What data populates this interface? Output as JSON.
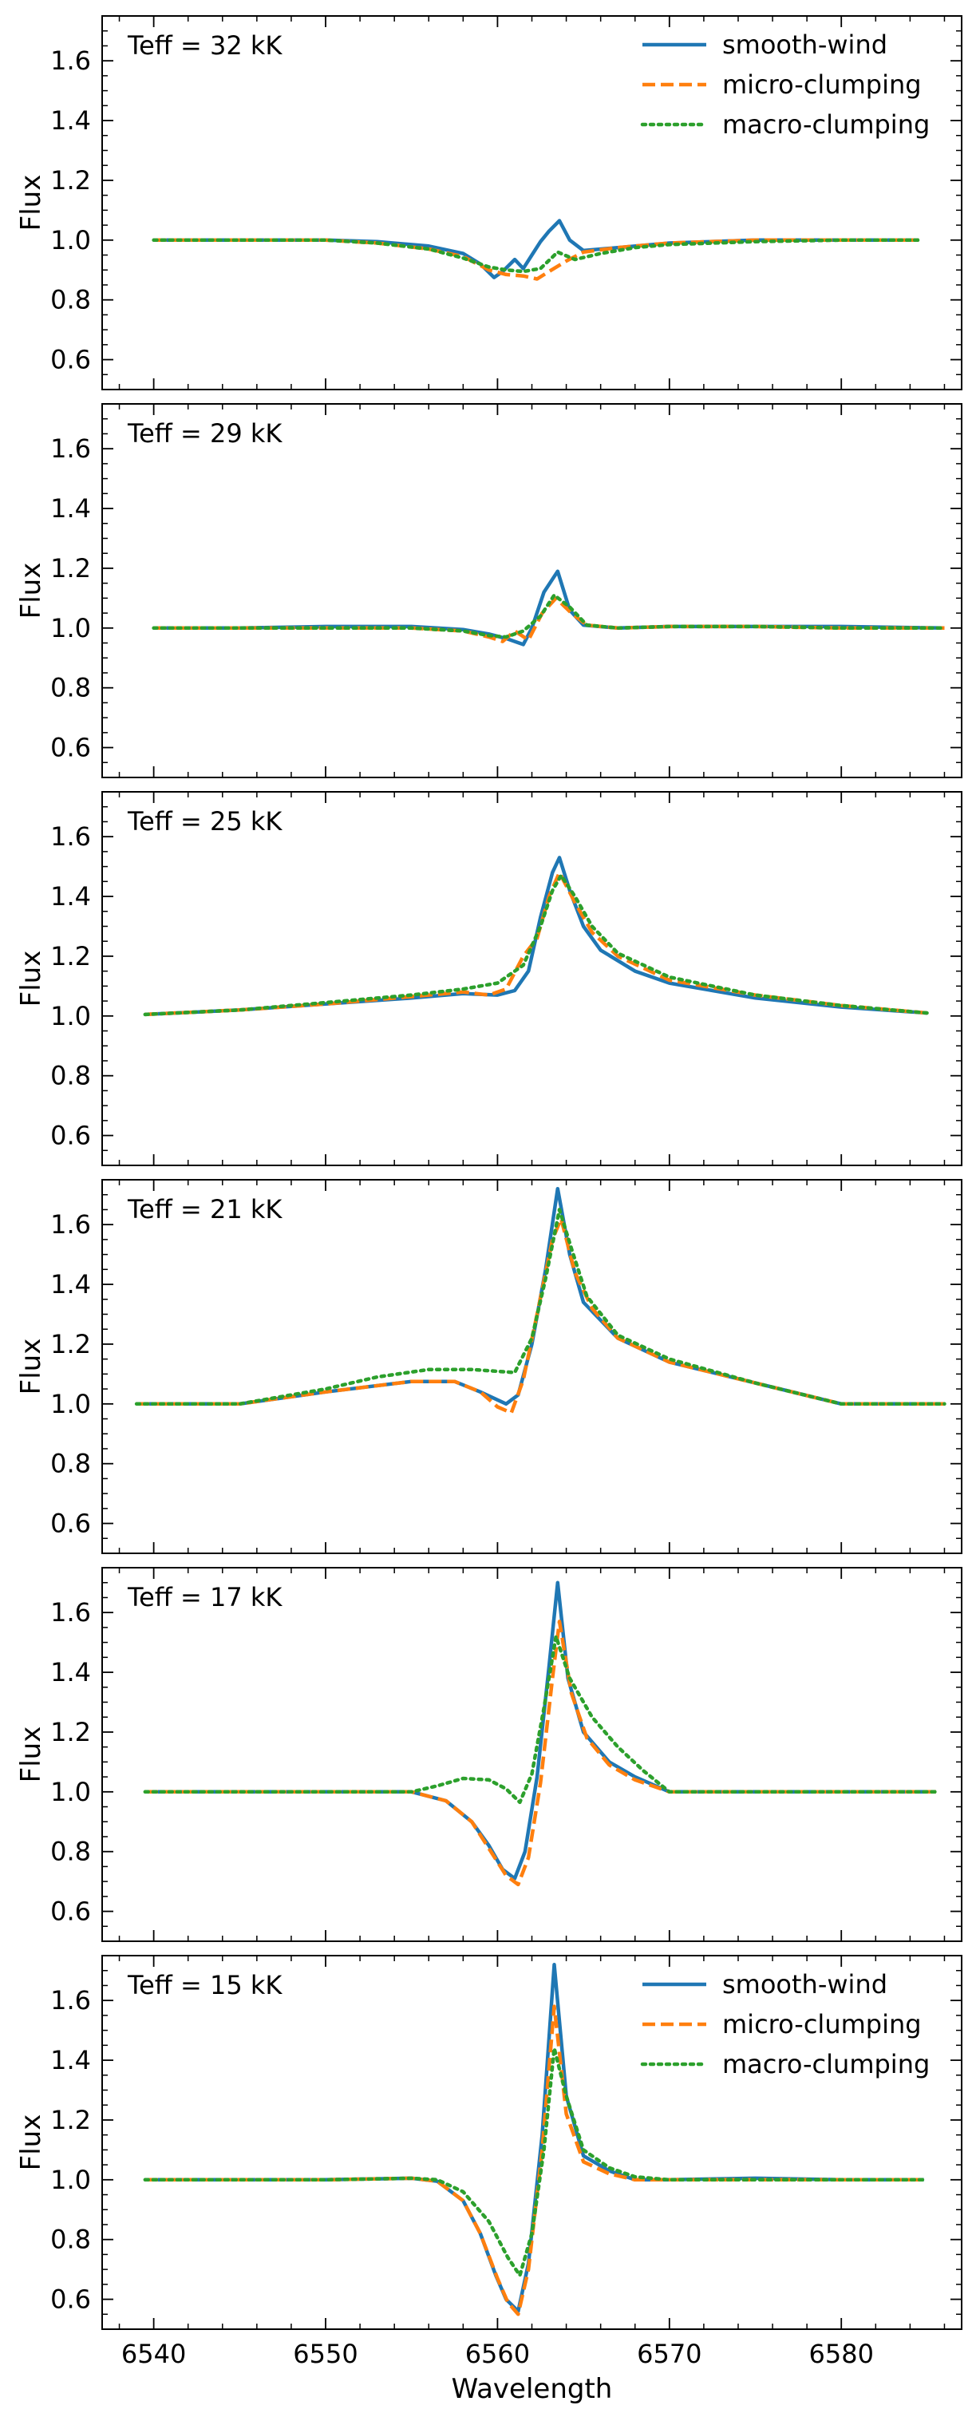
{
  "chart_data": {
    "type": "line",
    "xlabel": "Wavelength",
    "ylabel": "Flux",
    "xlim": [
      6537,
      6587
    ],
    "ylim": [
      0.5,
      1.75
    ],
    "xticks": [
      "6540",
      "6550",
      "6560",
      "6570",
      "6580"
    ],
    "yticks": [
      "0.6",
      "0.8",
      "1.0",
      "1.2",
      "1.4",
      "1.6"
    ],
    "styles": {
      "smooth-wind": {
        "color": "#1f77b4",
        "dash": "solid"
      },
      "micro-clumping": {
        "color": "#ff7f0e",
        "dash": "dashed"
      },
      "macro-clumping": {
        "color": "#2ca02c",
        "dash": "dotted"
      }
    },
    "legend_entries": [
      "smooth-wind",
      "micro-clumping",
      "macro-clumping"
    ],
    "legend_location": "upper right (top and bottom panels)",
    "panels": [
      {
        "label": "Teff = 32 kK",
        "show_legend": true,
        "series": [
          {
            "name": "smooth-wind",
            "x": [
              6540,
              6545,
              6550,
              6553,
              6556,
              6558,
              6559,
              6559.8,
              6560.3,
              6561,
              6561.5,
              6562,
              6562.5,
              6563,
              6563.6,
              6564.2,
              6565,
              6567,
              6570,
              6575,
              6580,
              6584.5
            ],
            "y": [
              1.0,
              1.0,
              1.0,
              0.995,
              0.98,
              0.955,
              0.92,
              0.875,
              0.895,
              0.935,
              0.905,
              0.95,
              0.995,
              1.03,
              1.065,
              1.0,
              0.965,
              0.975,
              0.99,
              1.0,
              1.0,
              1.0
            ]
          },
          {
            "name": "micro-clumping",
            "x": [
              6540,
              6545,
              6550,
              6553,
              6556,
              6558,
              6559.5,
              6560.5,
              6561.5,
              6562.3,
              6563,
              6564,
              6565,
              6567,
              6570,
              6575,
              6580,
              6584.5
            ],
            "y": [
              1.0,
              1.0,
              1.0,
              0.99,
              0.97,
              0.945,
              0.9,
              0.885,
              0.88,
              0.87,
              0.895,
              0.93,
              0.96,
              0.975,
              0.99,
              1.0,
              1.0,
              1.0
            ]
          },
          {
            "name": "macro-clumping",
            "x": [
              6540,
              6545,
              6550,
              6553,
              6556,
              6558,
              6559.5,
              6560.5,
              6561.5,
              6562.5,
              6563.5,
              6564.5,
              6566,
              6568,
              6570,
              6575,
              6580,
              6584.5
            ],
            "y": [
              1.0,
              1.0,
              1.0,
              0.99,
              0.97,
              0.94,
              0.91,
              0.9,
              0.895,
              0.905,
              0.96,
              0.935,
              0.955,
              0.975,
              0.985,
              0.995,
              1.0,
              1.0
            ]
          }
        ]
      },
      {
        "label": "Teff = 29 kK",
        "show_legend": false,
        "series": [
          {
            "name": "smooth-wind",
            "x": [
              6540,
              6545,
              6550,
              6555,
              6558,
              6559.5,
              6560.5,
              6561.5,
              6562,
              6562.7,
              6563.5,
              6564.2,
              6565,
              6567,
              6570,
              6575,
              6580,
              6586
            ],
            "y": [
              1.0,
              1.0,
              1.005,
              1.005,
              0.995,
              0.98,
              0.965,
              0.945,
              1.0,
              1.12,
              1.19,
              1.06,
              1.01,
              1.0,
              1.005,
              1.005,
              1.005,
              1.0
            ]
          },
          {
            "name": "micro-clumping",
            "x": [
              6540,
              6545,
              6550,
              6555,
              6558,
              6559.5,
              6560.3,
              6561,
              6561.8,
              6562.6,
              6563.4,
              6564.3,
              6565.2,
              6567,
              6570,
              6575,
              6580,
              6586
            ],
            "y": [
              1.0,
              1.0,
              1.0,
              1.0,
              0.99,
              0.97,
              0.955,
              0.99,
              0.96,
              1.05,
              1.1,
              1.05,
              1.01,
              1.0,
              1.005,
              1.005,
              1.0,
              1.0
            ]
          },
          {
            "name": "macro-clumping",
            "x": [
              6540,
              6545,
              6550,
              6555,
              6558,
              6559.5,
              6560.5,
              6561.5,
              6562.5,
              6563.3,
              6564.2,
              6565.2,
              6567,
              6570,
              6575,
              6580,
              6586
            ],
            "y": [
              1.0,
              1.0,
              1.0,
              1.0,
              0.99,
              0.975,
              0.97,
              0.99,
              1.04,
              1.11,
              1.07,
              1.01,
              1.0,
              1.005,
              1.005,
              1.0,
              1.0
            ]
          }
        ]
      },
      {
        "label": "Teff = 25 kK",
        "show_legend": false,
        "series": [
          {
            "name": "smooth-wind",
            "x": [
              6539.5,
              6545,
              6550,
              6555,
              6558,
              6560,
              6561,
              6561.8,
              6562.5,
              6563.2,
              6563.6,
              6564.2,
              6565,
              6566,
              6568,
              6570,
              6575,
              6580,
              6585
            ],
            "y": [
              1.005,
              1.02,
              1.04,
              1.06,
              1.075,
              1.07,
              1.085,
              1.15,
              1.33,
              1.48,
              1.53,
              1.42,
              1.3,
              1.22,
              1.15,
              1.11,
              1.06,
              1.03,
              1.01
            ]
          },
          {
            "name": "micro-clumping",
            "x": [
              6539.5,
              6545,
              6550,
              6555,
              6558,
              6559.5,
              6560.5,
              6561.5,
              6562.3,
              6563,
              6563.6,
              6564.5,
              6565.5,
              6567,
              6570,
              6575,
              6580,
              6585
            ],
            "y": [
              1.005,
              1.02,
              1.04,
              1.065,
              1.08,
              1.07,
              1.09,
              1.2,
              1.26,
              1.4,
              1.48,
              1.38,
              1.28,
              1.2,
              1.12,
              1.07,
              1.035,
              1.01
            ]
          },
          {
            "name": "macro-clumping",
            "x": [
              6539.5,
              6545,
              6550,
              6555,
              6558,
              6560,
              6561.5,
              6562.5,
              6563.2,
              6563.7,
              6564.5,
              6565.5,
              6567,
              6570,
              6575,
              6580,
              6585
            ],
            "y": [
              1.005,
              1.02,
              1.045,
              1.07,
              1.09,
              1.11,
              1.17,
              1.3,
              1.42,
              1.47,
              1.4,
              1.3,
              1.21,
              1.13,
              1.07,
              1.035,
              1.01
            ]
          }
        ]
      },
      {
        "label": "Teff = 21 kK",
        "show_legend": false,
        "series": [
          {
            "name": "smooth-wind",
            "x": [
              6539,
              6545,
              6550,
              6555,
              6557.5,
              6559,
              6560.5,
              6561.2,
              6562,
              6562.8,
              6563.5,
              6564.2,
              6565,
              6567,
              6570,
              6575,
              6580,
              6586
            ],
            "y": [
              1.0,
              1.0,
              1.04,
              1.075,
              1.075,
              1.04,
              1.0,
              1.03,
              1.2,
              1.45,
              1.72,
              1.5,
              1.34,
              1.22,
              1.14,
              1.07,
              1.0,
              1.0
            ]
          },
          {
            "name": "micro-clumping",
            "x": [
              6539,
              6545,
              6550,
              6555,
              6557.5,
              6559,
              6560,
              6560.8,
              6561.5,
              6562.3,
              6563.2,
              6563.7,
              6564.5,
              6565.5,
              6567,
              6570,
              6575,
              6580,
              6586
            ],
            "y": [
              1.0,
              1.0,
              1.04,
              1.075,
              1.075,
              1.04,
              0.99,
              0.97,
              1.08,
              1.3,
              1.55,
              1.62,
              1.44,
              1.32,
              1.22,
              1.14,
              1.07,
              1.0,
              1.0
            ]
          },
          {
            "name": "macro-clumping",
            "x": [
              6539,
              6545,
              6550,
              6553,
              6556,
              6558.5,
              6561,
              6562,
              6562.8,
              6563.6,
              6564.3,
              6565.2,
              6567,
              6570,
              6575,
              6580,
              6586
            ],
            "y": [
              1.0,
              1.0,
              1.05,
              1.09,
              1.115,
              1.115,
              1.105,
              1.22,
              1.42,
              1.65,
              1.52,
              1.36,
              1.23,
              1.15,
              1.07,
              1.0,
              1.0
            ]
          }
        ]
      },
      {
        "label": "Teff = 17 kK",
        "show_legend": false,
        "series": [
          {
            "name": "smooth-wind",
            "x": [
              6539.5,
              6545,
              6550,
              6555,
              6557,
              6558.5,
              6559.5,
              6560.3,
              6561,
              6561.6,
              6562.3,
              6563,
              6563.5,
              6564.1,
              6565,
              6566.5,
              6568,
              6570,
              6575,
              6580,
              6585.5
            ],
            "y": [
              1.0,
              1.0,
              1.0,
              1.0,
              0.97,
              0.9,
              0.82,
              0.74,
              0.71,
              0.8,
              1.05,
              1.42,
              1.7,
              1.38,
              1.2,
              1.1,
              1.05,
              1.0,
              1.0,
              1.0,
              1.0
            ]
          },
          {
            "name": "micro-clumping",
            "x": [
              6539.5,
              6545,
              6550,
              6555,
              6557,
              6558.5,
              6559.5,
              6560.5,
              6561.2,
              6561.8,
              6562.5,
              6563.2,
              6563.6,
              6564.3,
              6565.2,
              6566.5,
              6568,
              6570,
              6575,
              6580,
              6585.5
            ],
            "y": [
              1.0,
              1.0,
              1.0,
              1.0,
              0.97,
              0.9,
              0.81,
              0.72,
              0.69,
              0.78,
              1.03,
              1.38,
              1.57,
              1.33,
              1.18,
              1.09,
              1.04,
              1.0,
              1.0,
              1.0,
              1.0
            ]
          },
          {
            "name": "macro-clumping",
            "x": [
              6539.5,
              6545,
              6550,
              6555,
              6556.5,
              6558,
              6559.5,
              6560.5,
              6561.3,
              6562,
              6562.7,
              6563.4,
              6564.2,
              6565.5,
              6567,
              6568.5,
              6570,
              6575,
              6580,
              6585.5
            ],
            "y": [
              1.0,
              1.0,
              1.0,
              1.0,
              1.02,
              1.045,
              1.04,
              1.01,
              0.965,
              1.06,
              1.28,
              1.52,
              1.38,
              1.25,
              1.15,
              1.07,
              1.0,
              1.0,
              1.0,
              1.0
            ]
          }
        ]
      },
      {
        "label": "Teff = 15 kK",
        "show_legend": true,
        "series": [
          {
            "name": "smooth-wind",
            "x": [
              6539.5,
              6545,
              6550,
              6555,
              6556.5,
              6558,
              6559,
              6559.9,
              6560.5,
              6561.2,
              6561.8,
              6562.6,
              6563.3,
              6564,
              6565,
              6566.5,
              6568,
              6570,
              6575,
              6580,
              6584.8
            ],
            "y": [
              1.0,
              1.0,
              1.0,
              1.005,
              0.995,
              0.93,
              0.82,
              0.68,
              0.6,
              0.56,
              0.72,
              1.15,
              1.72,
              1.28,
              1.08,
              1.03,
              1.0,
              1.0,
              1.005,
              1.0,
              1.0
            ]
          },
          {
            "name": "micro-clumping",
            "x": [
              6539.5,
              6545,
              6550,
              6555,
              6556.5,
              6558,
              6559,
              6560,
              6560.6,
              6561.2,
              6561.8,
              6562.6,
              6563.3,
              6564,
              6565,
              6566.5,
              6568,
              6570,
              6575,
              6580,
              6584.8
            ],
            "y": [
              1.0,
              1.0,
              1.0,
              1.005,
              0.995,
              0.93,
              0.82,
              0.67,
              0.59,
              0.55,
              0.7,
              1.1,
              1.58,
              1.22,
              1.06,
              1.02,
              1.0,
              1.0,
              1.0,
              1.0,
              1.0
            ]
          },
          {
            "name": "macro-clumping",
            "x": [
              6539.5,
              6545,
              6550,
              6555,
              6556.5,
              6558,
              6559.5,
              6560.6,
              6561.3,
              6562,
              6562.7,
              6563.3,
              6564,
              6565,
              6566.5,
              6568,
              6570,
              6575,
              6580,
              6584.8
            ],
            "y": [
              1.0,
              1.0,
              1.0,
              1.005,
              1.0,
              0.96,
              0.86,
              0.74,
              0.68,
              0.82,
              1.1,
              1.44,
              1.28,
              1.1,
              1.04,
              1.01,
              1.0,
              1.0,
              1.0,
              1.0
            ]
          }
        ]
      }
    ]
  }
}
